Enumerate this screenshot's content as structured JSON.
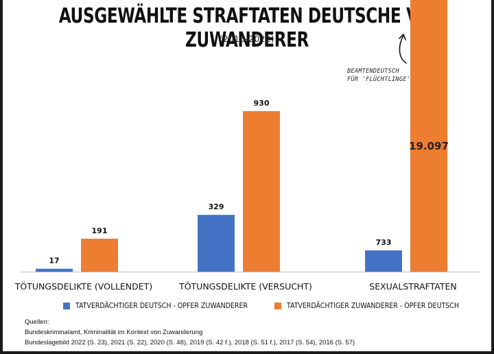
{
  "title": "AUSGEWÄHLTE STRAFTATEN DEUTSCHE VS. ZUWANDERER",
  "subtitle": "(2016-2022)",
  "annotation": [
    "BEAMTENDEUTSCH",
    "FÜR 'FLÜCHTLINGE'"
  ],
  "colors": {
    "blue": "#4472C4",
    "orange": "#ED7D31"
  },
  "chart_data": {
    "type": "bar",
    "categories": [
      "TÖTUNGSDELIKTE (VOLLENDET)",
      "TÖTUNGSDELIKTE (VERSUCHT)",
      "SEXUALSTRAFTATEN"
    ],
    "series": [
      {
        "name": "TATVERDÄCHTIGER DEUTSCH - OPFER ZUWANDERER",
        "values": [
          17,
          329,
          733
        ],
        "labels": [
          "17",
          "329",
          "733"
        ],
        "color": "#4472C4"
      },
      {
        "name": "TATVERDÄCHTIGER ZUWANDERER - OPFER DEUTSCH",
        "values": [
          191,
          930,
          19097
        ],
        "labels": [
          "191",
          "930",
          "19.097"
        ],
        "color": "#ED7D31"
      }
    ],
    "axis_note": "bar heights not to common scale; y-axis not shown",
    "grid": false,
    "legend_position": "bottom"
  },
  "sources": {
    "heading": "Quellen:",
    "line1": "Bundeskriminalamt, Kriminalität im Kontext von Zuwanderung",
    "line2": "Bundeslagebild 2022 (S. 23), 2021 (S. 22), 2020 (S. 48), 2019 (S. 42 f.), 2018 (S. 51 f.), 2017 (S. 54), 2016 (S. 57)"
  }
}
